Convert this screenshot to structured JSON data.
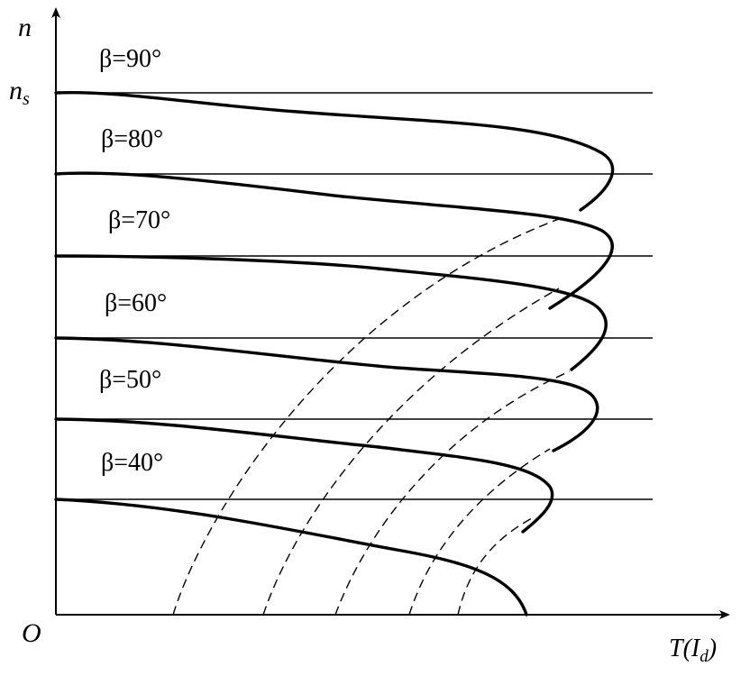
{
  "diagram": {
    "axes": {
      "y_label": "n",
      "y_mark_label": "n",
      "y_mark_subscript": "s",
      "origin_label": "O",
      "x_label_main": "T(I",
      "x_label_sub": "d",
      "x_label_close": ")"
    },
    "curves": [
      {
        "label": "β=90°"
      },
      {
        "label": "β=80°"
      },
      {
        "label": "β=70°"
      },
      {
        "label": "β=60°"
      },
      {
        "label": "β=50°"
      },
      {
        "label": "β=40°"
      }
    ],
    "colors": {
      "ink": "#000000",
      "background": "#ffffff"
    }
  }
}
